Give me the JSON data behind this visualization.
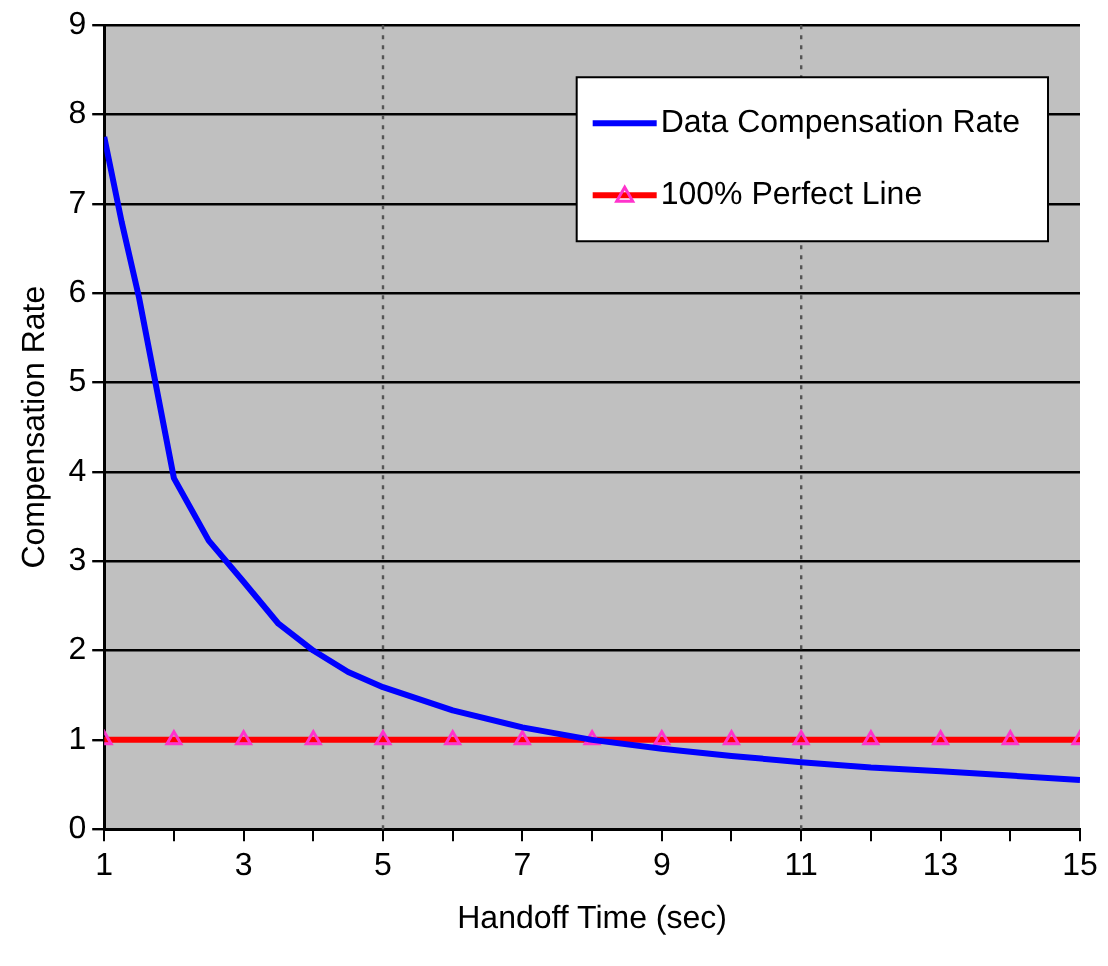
{
  "chart_data": {
    "type": "line",
    "xlabel": "Handoff Time (sec)",
    "ylabel": "Compensation Rate",
    "xlim": [
      1,
      15
    ],
    "xticks": [
      1,
      {
        "value": 2,
        "label": null
      },
      3,
      {
        "value": 4,
        "label": null
      },
      5,
      {
        "value": 6,
        "label": null
      },
      7,
      {
        "value": 8,
        "label": null
      },
      9,
      {
        "value": 10,
        "label": null
      },
      11,
      {
        "value": 12,
        "label": null
      },
      13,
      {
        "value": 14,
        "label": null
      },
      15
    ],
    "ylim": [
      0,
      9
    ],
    "yticks": [
      0,
      1,
      2,
      3,
      4,
      5,
      6,
      7,
      8,
      9
    ],
    "grid": "y",
    "legend": "top right",
    "ref_lines": [
      {
        "axis": "x",
        "value": 5,
        "line_style": "dotted",
        "color": "#555555"
      },
      {
        "axis": "x",
        "value": 11,
        "line_style": "dotted",
        "color": "#555555"
      }
    ],
    "series": [
      {
        "name": "Data Compensation Rate",
        "color": "#0000ff",
        "marker": "none",
        "line_style": "solid",
        "x": [
          1,
          1.25,
          1.5,
          2,
          2.5,
          3,
          3.5,
          4,
          4.5,
          5,
          6,
          7,
          8,
          9,
          10,
          11,
          12,
          13,
          14,
          15
        ],
        "values": [
          7.75,
          6.8,
          5.95,
          3.93,
          3.23,
          2.77,
          2.3,
          2.0,
          1.76,
          1.59,
          1.33,
          1.14,
          1.0,
          0.9,
          0.82,
          0.75,
          0.69,
          0.65,
          0.6,
          0.55
        ]
      },
      {
        "name": "100% Perfect Line",
        "color": "#ff0000",
        "marker": "triangle",
        "line_style": "solid",
        "x": [
          1,
          2,
          3,
          4,
          5,
          6,
          7,
          8,
          9,
          10,
          11,
          12,
          13,
          14,
          15
        ],
        "values": [
          1,
          1,
          1,
          1,
          1,
          1,
          1,
          1,
          1,
          1,
          1,
          1,
          1,
          1,
          1
        ]
      }
    ]
  }
}
